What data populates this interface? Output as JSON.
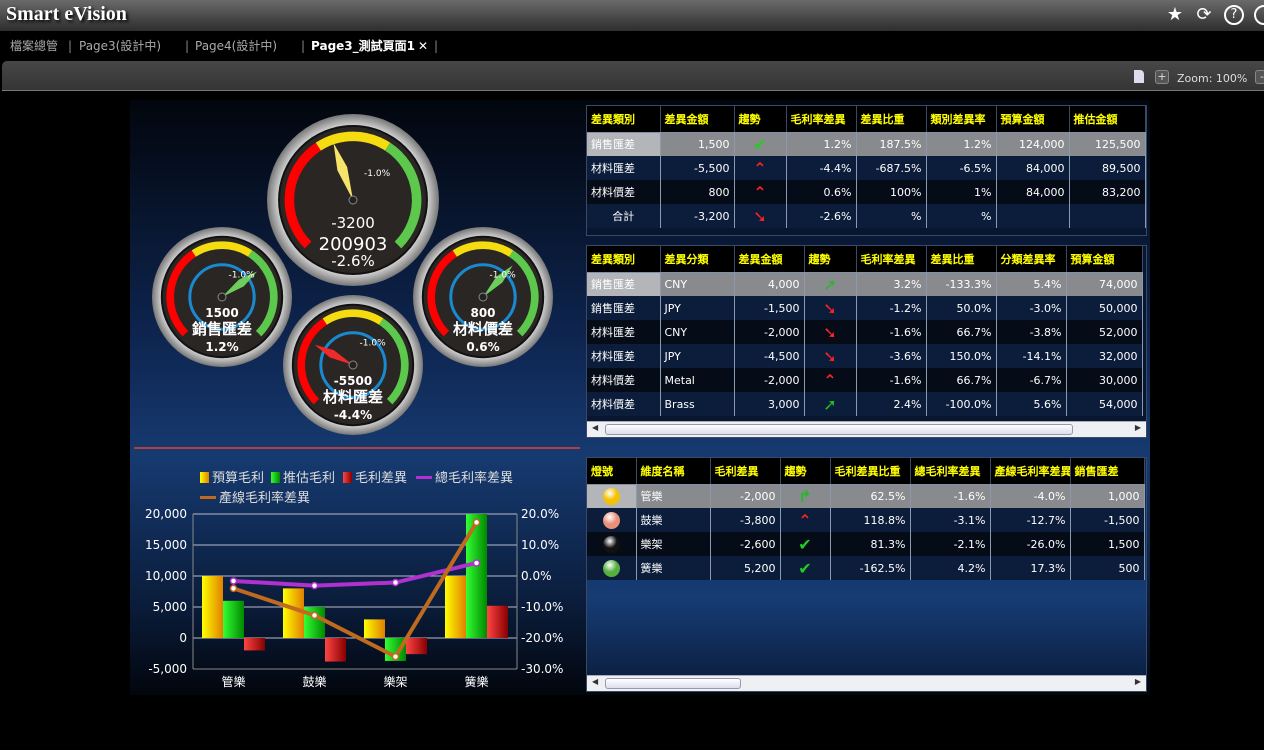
{
  "app": {
    "title": "Smart eVision"
  },
  "header_icons": [
    "star-icon",
    "refresh-icon",
    "help-icon"
  ],
  "tabs": [
    {
      "label": "檔案總管"
    },
    {
      "label": "Page3(設計中)"
    },
    {
      "label": "Page4(設計中)"
    },
    {
      "label": "Page3_測試頁面1",
      "active": true
    }
  ],
  "toolbar": {
    "zoom_label": "Zoom: 100%",
    "plus": "+",
    "minus": "-"
  },
  "gauges": [
    {
      "value": "-3200",
      "title": "200903",
      "pct": "-2.6%",
      "marker": "-1.0%",
      "needle_color": "#f5e36a",
      "fraction": 0.43
    },
    {
      "value": "1500",
      "title": "銷售匯差",
      "pct": "1.2%",
      "marker": "-1.0%",
      "needle_color": "#6ccc5c",
      "fraction": 0.7
    },
    {
      "value": "800",
      "title": "材料價差",
      "pct": "0.6%",
      "marker": "-1.0%",
      "needle_color": "#6ccc5c",
      "fraction": 0.66
    },
    {
      "value": "-5500",
      "title": "材料匯差",
      "pct": "-4.4%",
      "marker": "-1.0%",
      "needle_color": "#ee2a2a",
      "fraction": 0.27
    }
  ],
  "table1": {
    "headers": [
      "差異類別",
      "差異金額",
      "趨勢",
      "毛利率差異",
      "差異比重",
      "類別差異率",
      "預算金額",
      "推估金額"
    ],
    "rows": [
      [
        "銷售匯差",
        "1,500",
        "check",
        "1.2%",
        "187.5%",
        "1.2%",
        "124,000",
        "125,500"
      ],
      [
        "材料匯差",
        "-5,500",
        "updown",
        "-4.4%",
        "-687.5%",
        "-6.5%",
        "84,000",
        "89,500"
      ],
      [
        "材料價差",
        "800",
        "updown",
        "0.6%",
        "100%",
        "1%",
        "84,000",
        "83,200"
      ],
      [
        "合計",
        "-3,200",
        "down",
        "-2.6%",
        "%",
        "%",
        "",
        ""
      ]
    ]
  },
  "table2": {
    "headers": [
      "差異類別",
      "差異分類",
      "差異金額",
      "趨勢",
      "毛利率差異",
      "差異比重",
      "分類差異率",
      "預算金額"
    ],
    "rows": [
      [
        "銷售匯差",
        "CNY",
        "4,000",
        "up",
        "3.2%",
        "-133.3%",
        "5.4%",
        "74,000"
      ],
      [
        "銷售匯差",
        "JPY",
        "-1,500",
        "down",
        "-1.2%",
        "50.0%",
        "-3.0%",
        "50,000"
      ],
      [
        "材料匯差",
        "CNY",
        "-2,000",
        "down",
        "-1.6%",
        "66.7%",
        "-3.8%",
        "52,000"
      ],
      [
        "材料匯差",
        "JPY",
        "-4,500",
        "down",
        "-3.6%",
        "150.0%",
        "-14.1%",
        "32,000"
      ],
      [
        "材料價差",
        "Metal",
        "-2,000",
        "updown",
        "-1.6%",
        "66.7%",
        "-6.7%",
        "30,000"
      ],
      [
        "材料價差",
        "Brass",
        "3,000",
        "up",
        "2.4%",
        "-100.0%",
        "5.6%",
        "54,000"
      ]
    ]
  },
  "table3": {
    "headers": [
      "燈號",
      "維度名稱",
      "毛利差異",
      "趨勢",
      "毛利差異比重",
      "總毛利率差異",
      "產線毛利率差異",
      "銷售匯差"
    ],
    "rows": [
      [
        "#f5c000",
        "管樂",
        "-2,000",
        "turn",
        "62.5%",
        "-1.6%",
        "-4.0%",
        "1,000"
      ],
      [
        "#e8907a",
        "鼓樂",
        "-3,800",
        "updown",
        "118.8%",
        "-3.1%",
        "-12.7%",
        "-1,500"
      ],
      [
        "#111111",
        "樂架",
        "-2,600",
        "check",
        "81.3%",
        "-2.1%",
        "-26.0%",
        "1,500"
      ],
      [
        "#55b040",
        "簧樂",
        "5,200",
        "check",
        "-162.5%",
        "4.2%",
        "17.3%",
        "500"
      ]
    ]
  },
  "chart_data": {
    "type": "bar",
    "categories": [
      "管樂",
      "鼓樂",
      "樂架",
      "簧樂"
    ],
    "series": [
      {
        "name": "預算毛利",
        "type": "bar",
        "axis": "left",
        "color": "#f5c000",
        "values": [
          10000,
          8000,
          3000,
          10000
        ]
      },
      {
        "name": "推估毛利",
        "type": "bar",
        "axis": "left",
        "color": "#1ccc10",
        "values": [
          6000,
          5000,
          -3700,
          20000
        ]
      },
      {
        "name": "毛利差異",
        "type": "bar",
        "axis": "left",
        "color": "#c82020",
        "values": [
          -2000,
          -3800,
          -2600,
          5200
        ]
      },
      {
        "name": "總毛利率差異",
        "type": "line",
        "axis": "right",
        "color": "#b030d0",
        "values": [
          -1.6,
          -3.1,
          -2.1,
          4.2
        ]
      },
      {
        "name": "產線毛利率差異",
        "type": "line",
        "axis": "right",
        "color": "#c06a20",
        "values": [
          -4.0,
          -12.7,
          -26.0,
          17.3
        ]
      }
    ],
    "ylim_left": [
      -5000,
      20000
    ],
    "ylim_right": [
      -30,
      20
    ],
    "yticks_left": [
      "20,000",
      "15,000",
      "10,000",
      "5,000",
      "0",
      "-5,000"
    ],
    "yticks_right": [
      "20.0%",
      "10.0%",
      "0.0%",
      "-10.0%",
      "-20.0%",
      "-30.0%"
    ],
    "grid": true,
    "legend": "top"
  }
}
